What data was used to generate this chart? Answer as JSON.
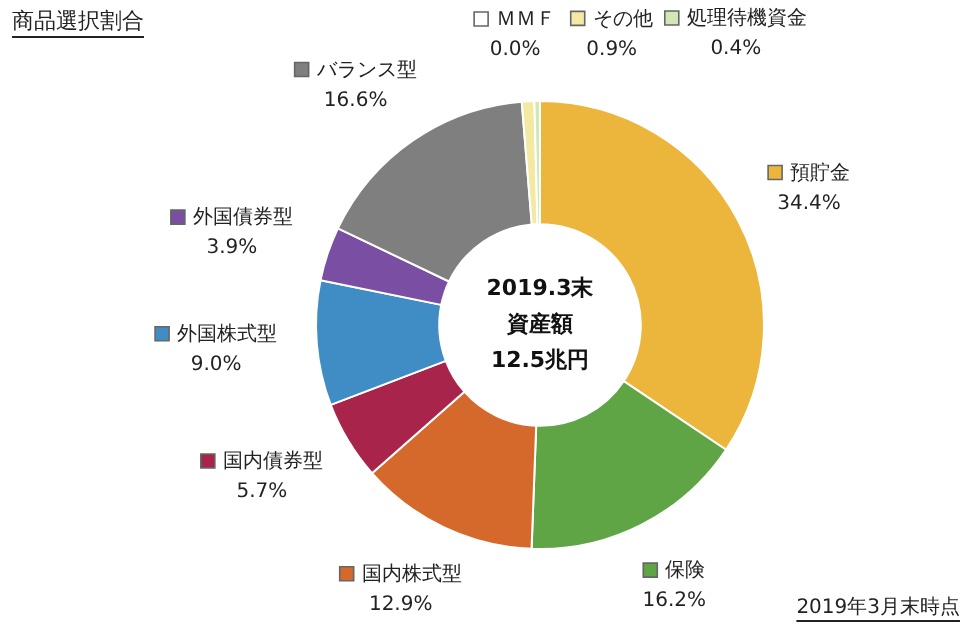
{
  "chart_data": {
    "type": "donut",
    "title": "商品選択割合",
    "categories": [
      "預貯金",
      "保険",
      "国内株式型",
      "国内債券型",
      "外国株式型",
      "外国債券型",
      "バランス型",
      "ＭＭＦ",
      "その他",
      "処理待機資金"
    ],
    "values": [
      34.4,
      16.2,
      12.9,
      5.7,
      9.0,
      3.9,
      16.6,
      0.0,
      0.9,
      0.4
    ],
    "value_labels": [
      "34.4%",
      "16.2%",
      "12.9%",
      "5.7%",
      "9.0%",
      "3.9%",
      "16.6%",
      "0.0%",
      "0.9%",
      "0.4%"
    ],
    "colors": [
      "#ecb63c",
      "#5fa545",
      "#d4692b",
      "#a8244a",
      "#3f8dc4",
      "#7a4fa3",
      "#7f7f7f",
      "#ffffff",
      "#f3e9a2",
      "#d3e6b5"
    ],
    "annotations": [
      "2019.3末",
      "資産額",
      "12.5兆円",
      "2019年3月末時点"
    ],
    "legend": "top left"
  }
}
